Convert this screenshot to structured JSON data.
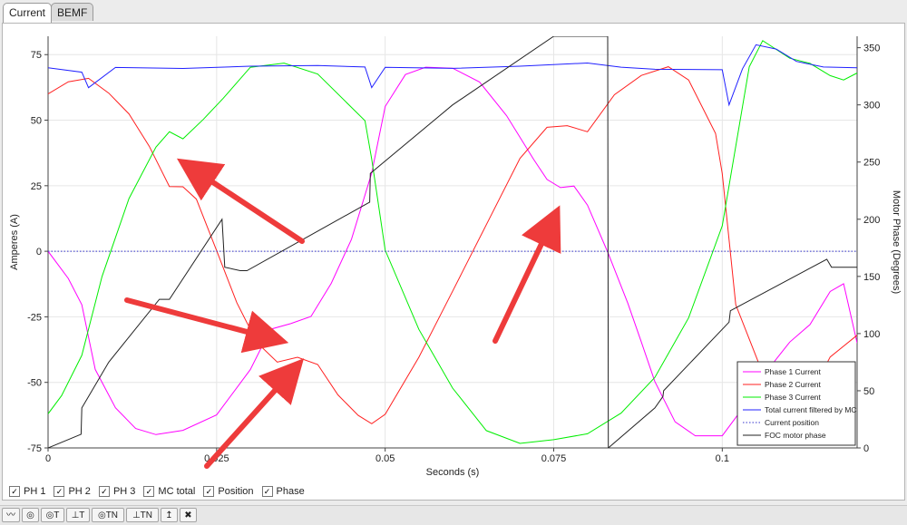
{
  "tabs": [
    {
      "label": "Current",
      "active": true
    },
    {
      "label": "BEMF",
      "active": false
    }
  ],
  "checkboxes": [
    {
      "label": "PH 1",
      "checked": true
    },
    {
      "label": "PH 2",
      "checked": true
    },
    {
      "label": "PH 3",
      "checked": true
    },
    {
      "label": "MC total",
      "checked": true
    },
    {
      "label": "Position",
      "checked": true
    },
    {
      "label": "Phase",
      "checked": true
    }
  ],
  "toolbar": [
    {
      "label": "〰",
      "icon": "wave-icon"
    },
    {
      "label": "◎",
      "icon": "target-icon"
    },
    {
      "label": "◎T",
      "icon": "target-t-icon"
    },
    {
      "label": "⊥T",
      "icon": "bug-t-icon"
    },
    {
      "label": "◎TN",
      "icon": "target-tn-icon"
    },
    {
      "label": "⊥TN",
      "icon": "bug-tn-icon"
    },
    {
      "label": "↥",
      "icon": "upload-icon"
    },
    {
      "label": "✖",
      "icon": "close-circle-icon"
    }
  ],
  "chart_data": {
    "type": "line",
    "xlabel": "Seconds (s)",
    "ylabel_left": "Amperes (A)",
    "ylabel_right": "Motor Phase (Degrees)",
    "xlim": [
      0,
      0.12
    ],
    "ylim_left": [
      -75,
      82
    ],
    "ylim_right": [
      0,
      360
    ],
    "x_ticks": [
      0,
      0.025,
      0.05,
      0.075,
      0.1
    ],
    "x_tick_labels": [
      "0",
      "0.025",
      "0.05",
      "0.075",
      "0.1"
    ],
    "y_ticks_left": [
      -75,
      -50,
      -25,
      0,
      25,
      50,
      75
    ],
    "y_ticks_right": [
      0,
      50,
      100,
      150,
      200,
      250,
      300,
      350
    ],
    "grid": true,
    "legend_position": "bottom-right",
    "series": [
      {
        "name": "Phase 1 Current",
        "color": "#ff00ff",
        "axis": "left",
        "x": [
          0,
          0.003,
          0.005,
          0.007,
          0.01,
          0.013,
          0.016,
          0.02,
          0.025,
          0.03,
          0.033,
          0.036,
          0.039,
          0.042,
          0.045,
          0.048,
          0.05,
          0.053,
          0.056,
          0.06,
          0.064,
          0.068,
          0.072,
          0.074,
          0.076,
          0.078,
          0.08,
          0.083,
          0.086,
          0.088,
          0.09,
          0.093,
          0.096,
          0.1,
          0.103,
          0.106,
          0.11,
          0.113,
          0.116,
          0.118,
          0.12
        ],
        "y": [
          0,
          -10,
          -20,
          -45,
          -60,
          -68,
          -70,
          -68,
          -62,
          -45,
          -30,
          -28,
          -25,
          -12,
          5,
          30,
          55,
          67,
          70,
          70,
          65,
          52,
          35,
          27,
          24,
          25,
          18,
          0,
          -20,
          -35,
          -50,
          -65,
          -70,
          -70,
          -60,
          -48,
          -35,
          -28,
          -15,
          -12,
          -35
        ]
      },
      {
        "name": "Phase 2 Current",
        "color": "#ff2020",
        "axis": "left",
        "x": [
          0,
          0.003,
          0.006,
          0.009,
          0.012,
          0.015,
          0.018,
          0.02,
          0.022,
          0.025,
          0.028,
          0.031,
          0.034,
          0.037,
          0.04,
          0.043,
          0.046,
          0.048,
          0.05,
          0.055,
          0.06,
          0.065,
          0.07,
          0.074,
          0.077,
          0.08,
          0.084,
          0.088,
          0.092,
          0.095,
          0.099,
          0.1,
          0.102,
          0.105,
          0.108,
          0.11,
          0.113,
          0.116,
          0.12
        ],
        "y": [
          60,
          65,
          66,
          60,
          52,
          40,
          25,
          25,
          20,
          0,
          -20,
          -35,
          -42,
          -40,
          -43,
          -55,
          -63,
          -66,
          -62,
          -40,
          -15,
          10,
          35,
          47,
          48,
          46,
          60,
          67,
          70,
          65,
          45,
          30,
          -20,
          -40,
          -60,
          -70,
          -55,
          -40,
          -32
        ]
      },
      {
        "name": "Phase 3 Current",
        "color": "#00ee00",
        "axis": "left",
        "x": [
          0,
          0.002,
          0.005,
          0.008,
          0.012,
          0.016,
          0.018,
          0.02,
          0.023,
          0.026,
          0.03,
          0.035,
          0.04,
          0.047,
          0.048,
          0.05,
          0.055,
          0.06,
          0.065,
          0.07,
          0.075,
          0.08,
          0.085,
          0.09,
          0.095,
          0.1,
          0.102,
          0.104,
          0.106,
          0.108,
          0.11,
          0.113,
          0.116,
          0.118,
          0.12
        ],
        "y": [
          -62,
          -55,
          -40,
          -10,
          20,
          40,
          46,
          43,
          50,
          58,
          70,
          72,
          68,
          50,
          35,
          0,
          -30,
          -52,
          -68,
          -73,
          -72,
          -70,
          -62,
          -48,
          -25,
          10,
          40,
          70,
          80,
          77,
          74,
          72,
          67,
          65,
          68
        ]
      },
      {
        "name": "Total current filtered by MC",
        "color": "#2020ff",
        "axis": "left",
        "x": [
          0,
          0.005,
          0.006,
          0.01,
          0.02,
          0.03,
          0.04,
          0.047,
          0.048,
          0.05,
          0.06,
          0.07,
          0.08,
          0.085,
          0.09,
          0.1,
          0.101,
          0.103,
          0.105,
          0.108,
          0.111,
          0.115,
          0.12
        ],
        "y": [
          70,
          68,
          62,
          70,
          70,
          71,
          71,
          70,
          62,
          70,
          70,
          71,
          72,
          70,
          69,
          69,
          56,
          70,
          79,
          77,
          72,
          70,
          70
        ]
      },
      {
        "name": "Current position",
        "color": "#3333cc",
        "axis": "left",
        "dotted": true,
        "x": [
          0,
          0.12
        ],
        "y": [
          0,
          0
        ]
      },
      {
        "name": "FOC motor phase",
        "color": "#222222",
        "axis": "right",
        "x": [
          0,
          0.0049,
          0.005,
          0.009,
          0.0165,
          0.018,
          0.0258,
          0.0262,
          0.0285,
          0.0295,
          0.0477,
          0.0478,
          0.06,
          0.075,
          0.0804,
          0.083,
          0.0831,
          0.09,
          0.0912,
          0.0913,
          0.101,
          0.1012,
          0.1155,
          0.1162,
          0.12
        ],
        "y": [
          0,
          12,
          35,
          75,
          130,
          130,
          200,
          158,
          155,
          155,
          215,
          240,
          300,
          360,
          360,
          360,
          0,
          35,
          45,
          50,
          110,
          120,
          165,
          158,
          158
        ]
      }
    ]
  }
}
